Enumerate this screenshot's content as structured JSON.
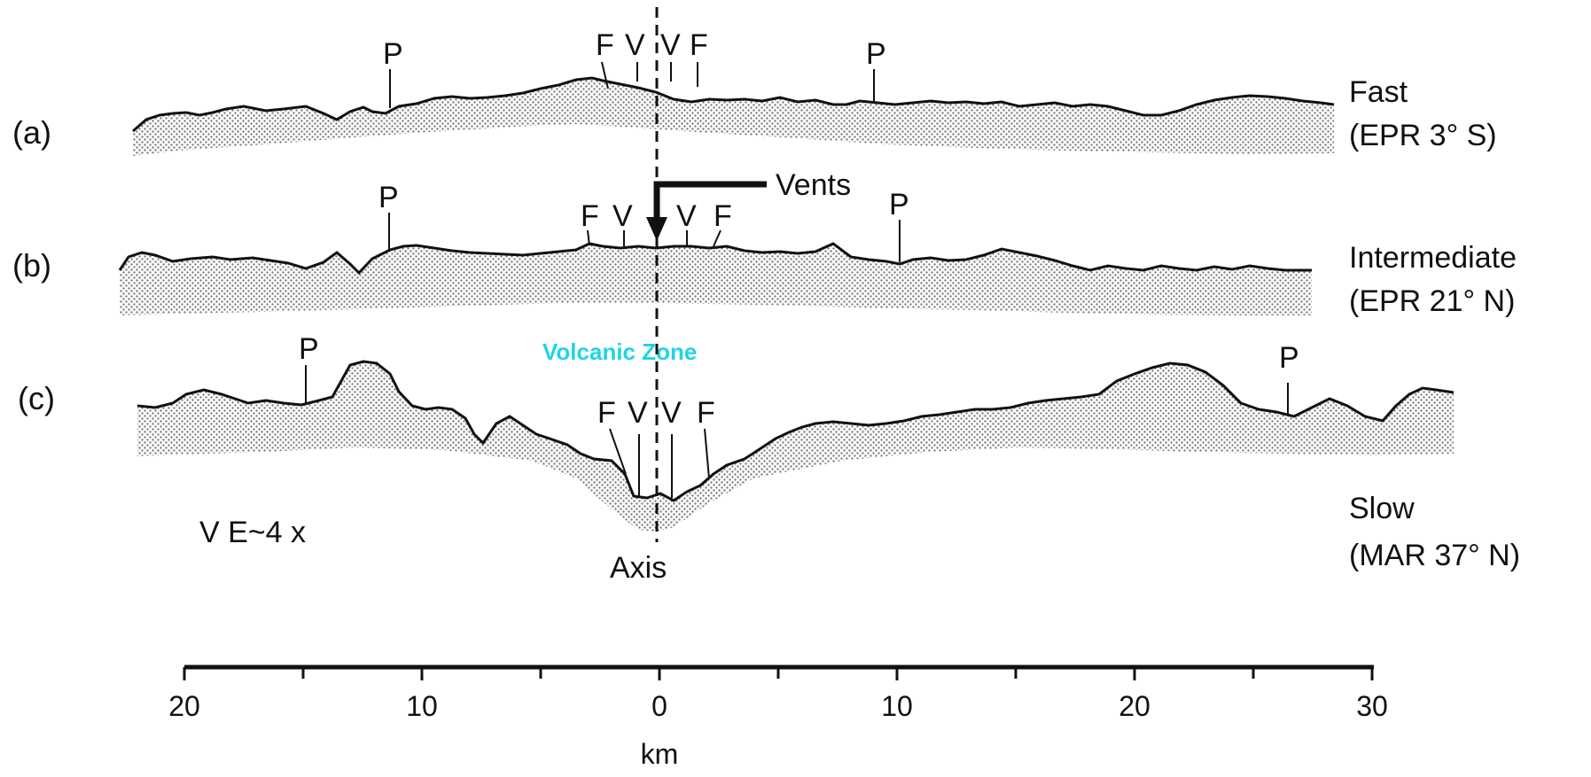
{
  "diagram": {
    "profiles": [
      {
        "id": "a",
        "label": "(a)",
        "speed": "Fast",
        "location": "(EPR 3° S)",
        "markers": [
          {
            "text": "P"
          },
          {
            "text": "F"
          },
          {
            "text": "V"
          },
          {
            "text": "V"
          },
          {
            "text": "F"
          },
          {
            "text": "P"
          }
        ]
      },
      {
        "id": "b",
        "label": "(b)",
        "speed": "Intermediate",
        "location": "(EPR 21° N)",
        "markers": [
          {
            "text": "P"
          },
          {
            "text": "F"
          },
          {
            "text": "V"
          },
          {
            "text": "V"
          },
          {
            "text": "F"
          },
          {
            "text": "P"
          }
        ]
      },
      {
        "id": "c",
        "label": "(c)",
        "speed": "Slow",
        "location": "(MAR 37° N)",
        "markers": [
          {
            "text": "P"
          },
          {
            "text": "F"
          },
          {
            "text": "V"
          },
          {
            "text": "V"
          },
          {
            "text": "F"
          },
          {
            "text": "P"
          }
        ]
      }
    ],
    "vents_label": "Vents",
    "volcanic_zone_label": "Volcanic Zone",
    "axis_label": "Axis",
    "vertical_exaggeration": "V E~4 x",
    "scale": {
      "ticks": [
        {
          "text": "20"
        },
        {
          "text": "10"
        },
        {
          "text": "0"
        },
        {
          "text": "10"
        },
        {
          "text": "20"
        },
        {
          "text": "30"
        }
      ],
      "unit": "km"
    },
    "colors": {
      "ink": "#111111",
      "volcanic_zone": "#22d3e6",
      "stipple": "#8a8a8a"
    }
  }
}
